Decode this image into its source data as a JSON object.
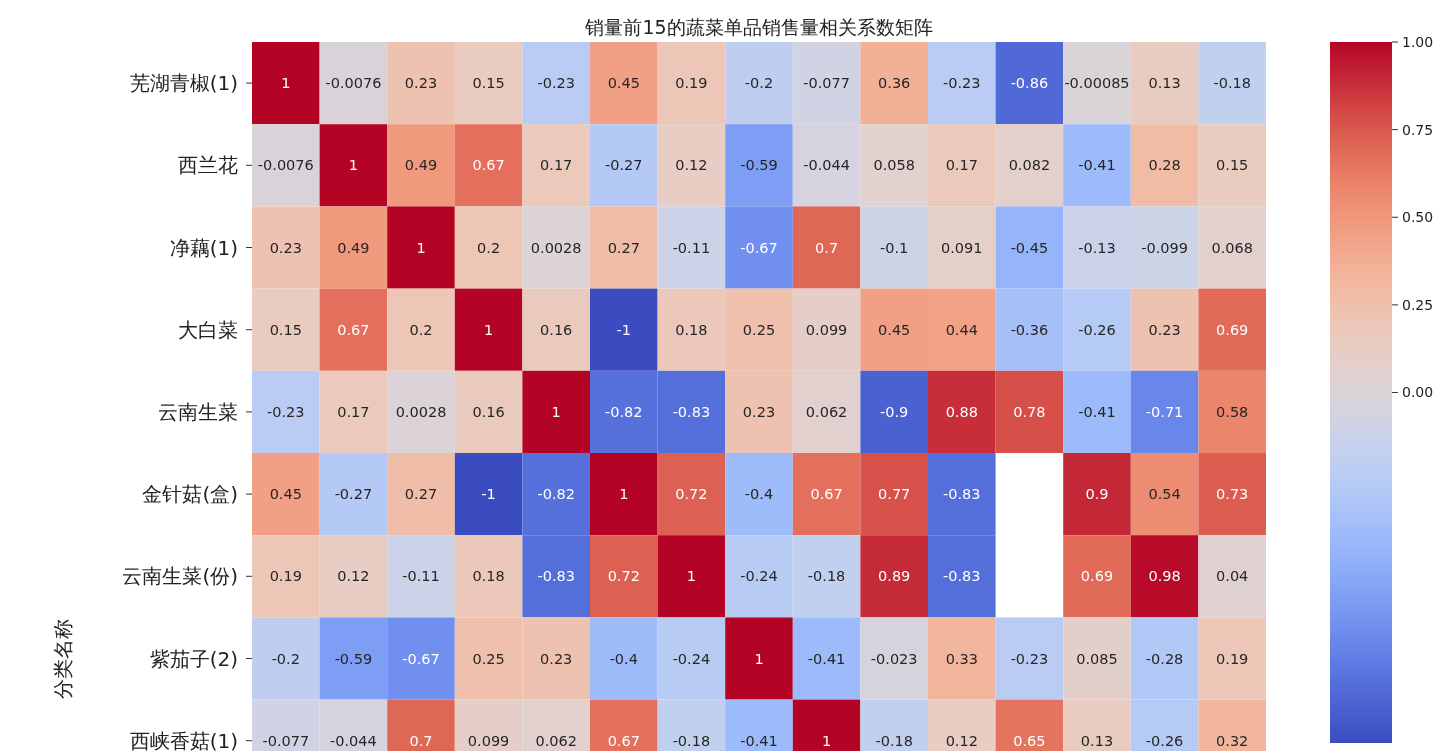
{
  "chart_data": {
    "type": "heatmap",
    "title": "销量前15的蔬菜单品销售量相关系数矩阵",
    "ylabel": "分类名称",
    "categories": [
      null,
      null,
      null,
      null,
      null,
      null,
      null,
      null,
      null,
      null,
      null,
      null,
      null,
      null,
      null
    ],
    "y_categories": [
      "芜湖青椒(1)",
      "西兰花",
      "净藕(1)",
      "大白菜",
      "云南生菜",
      "金针菇(盒)",
      "云南生菜(份)",
      "紫茄子(2)",
      "西峡香菇(1)"
    ],
    "cells": [
      [
        1,
        -0.0076,
        0.23,
        0.15,
        -0.23,
        0.45,
        0.19,
        -0.2,
        -0.077,
        0.36,
        -0.23,
        -0.86,
        -0.00085,
        0.13,
        -0.18
      ],
      [
        -0.0076,
        1,
        0.49,
        0.67,
        0.17,
        -0.27,
        0.12,
        -0.59,
        -0.044,
        0.058,
        0.17,
        0.082,
        -0.41,
        0.28,
        0.15
      ],
      [
        0.23,
        0.49,
        1,
        0.2,
        0.0028,
        0.27,
        -0.11,
        -0.67,
        0.7,
        -0.1,
        0.091,
        -0.45,
        -0.13,
        -0.099,
        0.068
      ],
      [
        0.15,
        0.67,
        0.2,
        1,
        0.16,
        -1,
        0.18,
        0.25,
        0.099,
        0.45,
        0.44,
        -0.36,
        -0.26,
        0.23,
        0.69
      ],
      [
        -0.23,
        0.17,
        0.0028,
        0.16,
        1,
        -0.82,
        -0.83,
        0.23,
        0.062,
        -0.9,
        0.88,
        0.78,
        -0.41,
        -0.71,
        0.58
      ],
      [
        0.45,
        -0.27,
        0.27,
        -1,
        -0.82,
        1,
        0.72,
        -0.4,
        0.67,
        0.77,
        -0.83,
        null,
        0.9,
        0.54,
        0.73
      ],
      [
        0.19,
        0.12,
        -0.11,
        0.18,
        -0.83,
        0.72,
        1,
        -0.24,
        -0.18,
        0.89,
        -0.83,
        null,
        0.69,
        0.98,
        0.04
      ],
      [
        -0.2,
        -0.59,
        -0.67,
        0.25,
        0.23,
        -0.4,
        -0.24,
        1,
        -0.41,
        -0.023,
        0.33,
        -0.23,
        0.085,
        -0.28,
        0.19
      ],
      [
        -0.077,
        -0.044,
        0.7,
        0.099,
        0.062,
        0.67,
        -0.18,
        -0.41,
        1,
        -0.18,
        0.12,
        0.65,
        0.13,
        -0.26,
        0.32
      ]
    ],
    "data_labels": true,
    "clim": [
      -1,
      1
    ],
    "cticks": [
      {
        "value": 0,
        "label": "0.00"
      },
      {
        "value": 0.25,
        "label": "0.25"
      },
      {
        "value": 0.5,
        "label": "0.50"
      },
      {
        "value": 0.75,
        "label": "0.75"
      },
      {
        "value": 1,
        "label": "1.00"
      }
    ]
  }
}
